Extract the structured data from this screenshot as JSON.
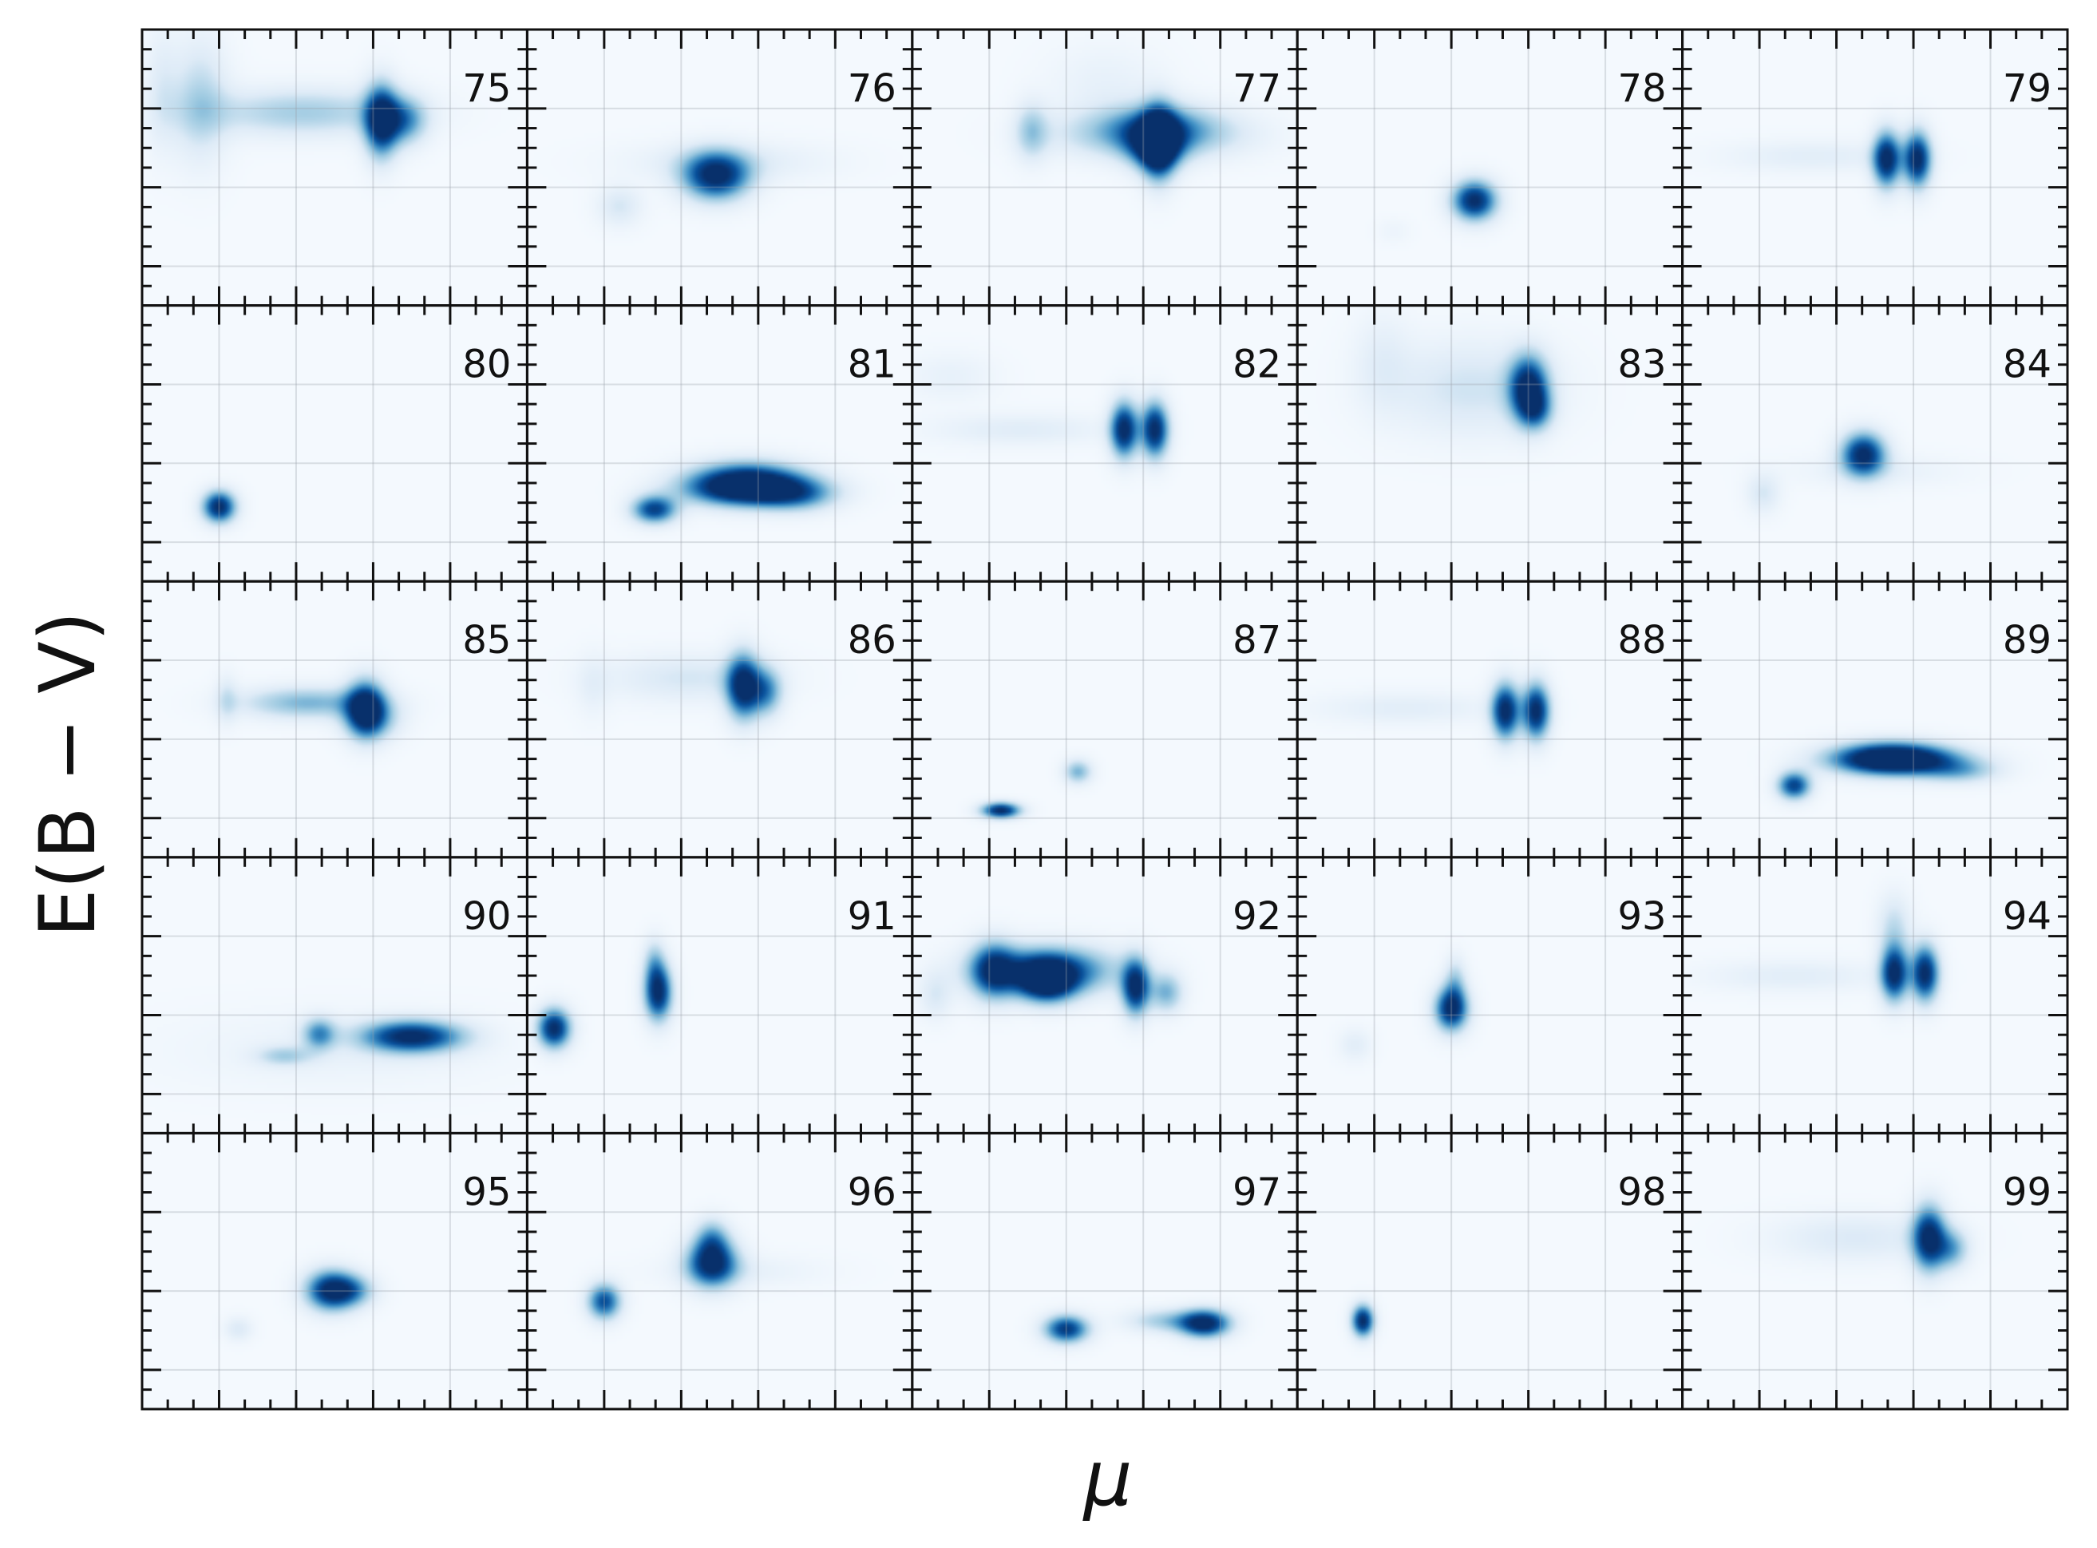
{
  "chart_data": {
    "type": "heatmap",
    "colormap": "Blues",
    "grid": true,
    "xlabel": "μ",
    "ylabel": "E(B − V)",
    "layout": {
      "rows": 5,
      "cols": 5
    },
    "panels": [
      {
        "label": "75",
        "blobs": [
          {
            "x": 0.15,
            "y": 0.74,
            "sx": 0.05,
            "sy": 0.15,
            "w": 0.3
          },
          {
            "x": 0.42,
            "y": 0.7,
            "sx": 0.18,
            "sy": 0.06,
            "w": 0.35
          },
          {
            "x": 0.62,
            "y": 0.67,
            "sx": 0.03,
            "sy": 0.09,
            "w": 1.0
          },
          {
            "x": 0.68,
            "y": 0.67,
            "sx": 0.04,
            "sy": 0.06,
            "w": 0.55
          },
          {
            "x": 0.05,
            "y": 0.78,
            "sx": 0.03,
            "sy": 0.15,
            "w": 0.15
          }
        ]
      },
      {
        "label": "76",
        "blobs": [
          {
            "x": 0.49,
            "y": 0.47,
            "sx": 0.06,
            "sy": 0.06,
            "w": 1.0
          },
          {
            "x": 0.24,
            "y": 0.36,
            "sx": 0.04,
            "sy": 0.05,
            "w": 0.2
          },
          {
            "x": 0.52,
            "y": 0.52,
            "sx": 0.18,
            "sy": 0.05,
            "w": 0.15
          }
        ]
      },
      {
        "label": "77",
        "blobs": [
          {
            "x": 0.62,
            "y": 0.62,
            "sx": 0.16,
            "sy": 0.06,
            "w": 0.45
          },
          {
            "x": 0.31,
            "y": 0.63,
            "sx": 0.03,
            "sy": 0.07,
            "w": 0.35
          },
          {
            "x": 0.64,
            "y": 0.65,
            "sx": 0.1,
            "sy": 0.06,
            "w": 0.35
          },
          {
            "x": 0.63,
            "y": 0.58,
            "sx": 0.05,
            "sy": 0.06,
            "w": 0.75
          },
          {
            "x": 0.64,
            "y": 0.59,
            "sx": 0.03,
            "sy": 0.09,
            "w": 1.0
          },
          {
            "x": 0.5,
            "y": 0.8,
            "sx": 0.1,
            "sy": 0.1,
            "w": 0.1
          }
        ]
      },
      {
        "label": "78",
        "blobs": [
          {
            "x": 0.46,
            "y": 0.38,
            "sx": 0.04,
            "sy": 0.05,
            "w": 1.0
          },
          {
            "x": 0.25,
            "y": 0.27,
            "sx": 0.03,
            "sy": 0.03,
            "w": 0.06
          }
        ]
      },
      {
        "label": "79",
        "blobs": [
          {
            "x": 0.53,
            "y": 0.53,
            "sx": 0.025,
            "sy": 0.07,
            "w": 1.0
          },
          {
            "x": 0.61,
            "y": 0.53,
            "sx": 0.025,
            "sy": 0.07,
            "w": 1.0
          },
          {
            "x": 0.34,
            "y": 0.54,
            "sx": 0.16,
            "sy": 0.04,
            "w": 0.14
          }
        ]
      },
      {
        "label": "80",
        "blobs": [
          {
            "x": 0.2,
            "y": 0.27,
            "sx": 0.03,
            "sy": 0.04,
            "w": 1.0
          }
        ]
      },
      {
        "label": "81",
        "blobs": [
          {
            "x": 0.57,
            "y": 0.36,
            "sx": 0.1,
            "sy": 0.05,
            "w": 1.0
          },
          {
            "x": 0.58,
            "y": 0.33,
            "sx": 0.12,
            "sy": 0.04,
            "w": 0.6
          },
          {
            "x": 0.33,
            "y": 0.26,
            "sx": 0.04,
            "sy": 0.035,
            "w": 0.85
          },
          {
            "x": 0.7,
            "y": 0.31,
            "sx": 0.07,
            "sy": 0.04,
            "w": 0.4
          }
        ]
      },
      {
        "label": "82",
        "blobs": [
          {
            "x": 0.55,
            "y": 0.55,
            "sx": 0.025,
            "sy": 0.07,
            "w": 1.0
          },
          {
            "x": 0.63,
            "y": 0.55,
            "sx": 0.025,
            "sy": 0.07,
            "w": 1.0
          },
          {
            "x": 0.28,
            "y": 0.55,
            "sx": 0.16,
            "sy": 0.04,
            "w": 0.15
          },
          {
            "x": 0.1,
            "y": 0.74,
            "sx": 0.08,
            "sy": 0.06,
            "w": 0.1
          }
        ]
      },
      {
        "label": "83",
        "blobs": [
          {
            "x": 0.6,
            "y": 0.7,
            "sx": 0.035,
            "sy": 0.08,
            "w": 1.0
          },
          {
            "x": 0.62,
            "y": 0.62,
            "sx": 0.03,
            "sy": 0.05,
            "w": 0.45
          },
          {
            "x": 0.45,
            "y": 0.7,
            "sx": 0.15,
            "sy": 0.12,
            "w": 0.22
          },
          {
            "x": 0.22,
            "y": 0.8,
            "sx": 0.05,
            "sy": 0.12,
            "w": 0.12
          }
        ]
      },
      {
        "label": "84",
        "blobs": [
          {
            "x": 0.47,
            "y": 0.46,
            "sx": 0.04,
            "sy": 0.055,
            "w": 1.0
          },
          {
            "x": 0.21,
            "y": 0.32,
            "sx": 0.03,
            "sy": 0.05,
            "w": 0.2
          },
          {
            "x": 0.5,
            "y": 0.4,
            "sx": 0.15,
            "sy": 0.04,
            "w": 0.1
          }
        ]
      },
      {
        "label": "85",
        "blobs": [
          {
            "x": 0.58,
            "y": 0.54,
            "sx": 0.035,
            "sy": 0.07,
            "w": 1.0
          },
          {
            "x": 0.43,
            "y": 0.56,
            "sx": 0.12,
            "sy": 0.04,
            "w": 0.45
          },
          {
            "x": 0.22,
            "y": 0.57,
            "sx": 0.02,
            "sy": 0.06,
            "w": 0.2
          },
          {
            "x": 0.6,
            "y": 0.5,
            "sx": 0.05,
            "sy": 0.05,
            "w": 0.35
          }
        ]
      },
      {
        "label": "86",
        "blobs": [
          {
            "x": 0.56,
            "y": 0.62,
            "sx": 0.03,
            "sy": 0.08,
            "w": 1.0
          },
          {
            "x": 0.62,
            "y": 0.6,
            "sx": 0.03,
            "sy": 0.06,
            "w": 0.55
          },
          {
            "x": 0.42,
            "y": 0.65,
            "sx": 0.15,
            "sy": 0.06,
            "w": 0.2
          },
          {
            "x": 0.17,
            "y": 0.62,
            "sx": 0.03,
            "sy": 0.08,
            "w": 0.1
          }
        ]
      },
      {
        "label": "87",
        "blobs": [
          {
            "x": 0.23,
            "y": 0.17,
            "sx": 0.035,
            "sy": 0.02,
            "w": 1.0
          },
          {
            "x": 0.43,
            "y": 0.31,
            "sx": 0.025,
            "sy": 0.03,
            "w": 0.45
          }
        ]
      },
      {
        "label": "88",
        "blobs": [
          {
            "x": 0.54,
            "y": 0.53,
            "sx": 0.025,
            "sy": 0.07,
            "w": 1.0
          },
          {
            "x": 0.62,
            "y": 0.53,
            "sx": 0.025,
            "sy": 0.07,
            "w": 1.0
          },
          {
            "x": 0.28,
            "y": 0.54,
            "sx": 0.16,
            "sy": 0.04,
            "w": 0.14
          }
        ]
      },
      {
        "label": "89",
        "blobs": [
          {
            "x": 0.54,
            "y": 0.36,
            "sx": 0.1,
            "sy": 0.04,
            "w": 1.0
          },
          {
            "x": 0.57,
            "y": 0.35,
            "sx": 0.12,
            "sy": 0.035,
            "w": 0.55
          },
          {
            "x": 0.29,
            "y": 0.26,
            "sx": 0.03,
            "sy": 0.035,
            "w": 0.85
          },
          {
            "x": 0.72,
            "y": 0.31,
            "sx": 0.07,
            "sy": 0.03,
            "w": 0.35
          }
        ]
      },
      {
        "label": "90",
        "blobs": [
          {
            "x": 0.7,
            "y": 0.35,
            "sx": 0.09,
            "sy": 0.04,
            "w": 1.0
          },
          {
            "x": 0.46,
            "y": 0.36,
            "sx": 0.03,
            "sy": 0.04,
            "w": 0.55
          },
          {
            "x": 0.37,
            "y": 0.28,
            "sx": 0.05,
            "sy": 0.025,
            "w": 0.3
          },
          {
            "x": 0.5,
            "y": 0.3,
            "sx": 0.3,
            "sy": 0.1,
            "w": 0.08
          }
        ]
      },
      {
        "label": "91",
        "blobs": [
          {
            "x": 0.07,
            "y": 0.38,
            "sx": 0.03,
            "sy": 0.05,
            "w": 1.0
          },
          {
            "x": 0.34,
            "y": 0.51,
            "sx": 0.025,
            "sy": 0.07,
            "w": 1.0
          },
          {
            "x": 0.33,
            "y": 0.62,
            "sx": 0.02,
            "sy": 0.06,
            "w": 0.3
          }
        ]
      },
      {
        "label": "92",
        "blobs": [
          {
            "x": 0.35,
            "y": 0.59,
            "sx": 0.12,
            "sy": 0.06,
            "w": 0.85
          },
          {
            "x": 0.21,
            "y": 0.59,
            "sx": 0.04,
            "sy": 0.07,
            "w": 0.75
          },
          {
            "x": 0.35,
            "y": 0.55,
            "sx": 0.05,
            "sy": 0.05,
            "w": 1.0
          },
          {
            "x": 0.58,
            "y": 0.53,
            "sx": 0.025,
            "sy": 0.07,
            "w": 1.0
          },
          {
            "x": 0.66,
            "y": 0.51,
            "sx": 0.03,
            "sy": 0.05,
            "w": 0.45
          },
          {
            "x": 0.06,
            "y": 0.5,
            "sx": 0.03,
            "sy": 0.06,
            "w": 0.18
          }
        ]
      },
      {
        "label": "93",
        "blobs": [
          {
            "x": 0.4,
            "y": 0.45,
            "sx": 0.03,
            "sy": 0.055,
            "w": 1.0
          },
          {
            "x": 0.41,
            "y": 0.55,
            "sx": 0.02,
            "sy": 0.06,
            "w": 0.3
          },
          {
            "x": 0.15,
            "y": 0.32,
            "sx": 0.03,
            "sy": 0.04,
            "w": 0.14
          }
        ]
      },
      {
        "label": "94",
        "blobs": [
          {
            "x": 0.55,
            "y": 0.58,
            "sx": 0.025,
            "sy": 0.07,
            "w": 1.0
          },
          {
            "x": 0.63,
            "y": 0.58,
            "sx": 0.025,
            "sy": 0.07,
            "w": 1.0
          },
          {
            "x": 0.29,
            "y": 0.57,
            "sx": 0.16,
            "sy": 0.04,
            "w": 0.14
          },
          {
            "x": 0.55,
            "y": 0.75,
            "sx": 0.03,
            "sy": 0.08,
            "w": 0.25
          }
        ]
      },
      {
        "label": "95",
        "blobs": [
          {
            "x": 0.49,
            "y": 0.43,
            "sx": 0.045,
            "sy": 0.05,
            "w": 1.0
          },
          {
            "x": 0.55,
            "y": 0.43,
            "sx": 0.04,
            "sy": 0.04,
            "w": 0.4
          },
          {
            "x": 0.25,
            "y": 0.29,
            "sx": 0.025,
            "sy": 0.03,
            "w": 0.18
          }
        ]
      },
      {
        "label": "96",
        "blobs": [
          {
            "x": 0.48,
            "y": 0.53,
            "sx": 0.045,
            "sy": 0.06,
            "w": 1.0
          },
          {
            "x": 0.48,
            "y": 0.62,
            "sx": 0.03,
            "sy": 0.05,
            "w": 0.4
          },
          {
            "x": 0.2,
            "y": 0.39,
            "sx": 0.03,
            "sy": 0.045,
            "w": 0.8
          },
          {
            "x": 0.55,
            "y": 0.5,
            "sx": 0.15,
            "sy": 0.04,
            "w": 0.1
          }
        ]
      },
      {
        "label": "97",
        "blobs": [
          {
            "x": 0.4,
            "y": 0.29,
            "sx": 0.04,
            "sy": 0.035,
            "w": 0.9
          },
          {
            "x": 0.76,
            "y": 0.31,
            "sx": 0.045,
            "sy": 0.035,
            "w": 1.0
          },
          {
            "x": 0.66,
            "y": 0.32,
            "sx": 0.07,
            "sy": 0.03,
            "w": 0.35
          }
        ]
      },
      {
        "label": "98",
        "blobs": [
          {
            "x": 0.17,
            "y": 0.32,
            "sx": 0.02,
            "sy": 0.04,
            "w": 1.0
          }
        ]
      },
      {
        "label": "99",
        "blobs": [
          {
            "x": 0.64,
            "y": 0.62,
            "sx": 0.03,
            "sy": 0.08,
            "w": 1.0
          },
          {
            "x": 0.7,
            "y": 0.58,
            "sx": 0.03,
            "sy": 0.05,
            "w": 0.45
          },
          {
            "x": 0.45,
            "y": 0.62,
            "sx": 0.15,
            "sy": 0.06,
            "w": 0.18
          }
        ]
      }
    ]
  }
}
